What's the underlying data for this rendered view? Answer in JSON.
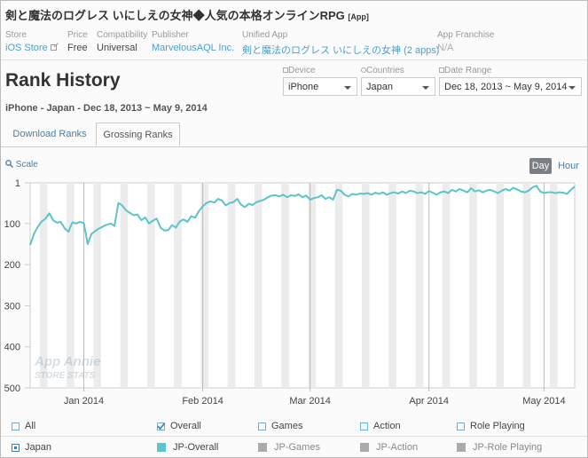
{
  "header": {
    "title": "剣と魔法のログレス いにしえの女神◆人気の本格オンラインRPG",
    "tag": "[App]",
    "fields": [
      {
        "label": "Store",
        "value": "iOS Store"
      },
      {
        "label": "Price",
        "value": "Free"
      },
      {
        "label": "Compatibility",
        "value": "Universal"
      },
      {
        "label": "Publisher",
        "value": "MarvelousAQL Inc."
      },
      {
        "label": "Unified App",
        "value": "剣と魔法のログレス いにしえの女神 (2 apps)"
      },
      {
        "label": "App Franchise",
        "value": "N/A"
      }
    ]
  },
  "section_title": "Rank History",
  "selectors": [
    {
      "label": "Device",
      "value": "iPhone"
    },
    {
      "label": "Countries",
      "value": "Japan"
    },
    {
      "label": "Date Range",
      "value": "Dec 18, 2013 ~ May 9, 2014"
    }
  ],
  "subtitle": "iPhone - Japan - Dec 18, 2013 ~ May 9, 2014",
  "tabs": [
    {
      "label": "Download Ranks",
      "active": false
    },
    {
      "label": "Grossing Ranks",
      "active": true
    }
  ],
  "scale_label": "Scale",
  "granularity": [
    {
      "label": "Day",
      "active": true
    },
    {
      "label": "Hour",
      "active": false
    }
  ],
  "chart_data": {
    "type": "line",
    "watermark": [
      "App Annie",
      "STORE STATS"
    ],
    "categories": [
      null,
      null,
      null,
      null,
      null,
      null,
      null,
      null,
      null,
      null,
      null,
      null,
      null,
      null,
      "Jan 2014",
      null,
      null,
      null,
      null,
      null,
      null,
      null,
      null,
      null,
      null,
      null,
      null,
      null,
      null,
      null,
      null,
      null,
      null,
      null,
      null,
      null,
      null,
      null,
      null,
      null,
      null,
      null,
      null,
      null,
      null,
      "Feb 2014",
      null,
      null,
      null,
      null,
      null,
      null,
      null,
      null,
      null,
      null,
      null,
      null,
      null,
      null,
      null,
      null,
      null,
      null,
      null,
      null,
      null,
      null,
      null,
      null,
      null,
      null,
      null,
      "Mar 2014",
      null,
      null,
      null,
      null,
      null,
      null,
      null,
      null,
      null,
      null,
      null,
      null,
      null,
      null,
      null,
      null,
      null,
      null,
      null,
      null,
      null,
      null,
      null,
      null,
      null,
      null,
      null,
      null,
      null,
      null,
      "Apr 2014",
      null,
      null,
      null,
      null,
      null,
      null,
      null,
      null,
      null,
      null,
      null,
      null,
      null,
      null,
      null,
      null,
      null,
      null,
      null,
      null,
      null,
      null,
      null,
      null,
      null,
      null,
      null,
      null,
      null,
      "May 2014",
      null,
      null,
      null,
      null,
      null,
      null,
      null,
      null
    ],
    "series": [
      {
        "name": "JP-Overall",
        "color": "#5bc4cc",
        "values": [
          152,
          125,
          108,
          95,
          88,
          75,
          92,
          98,
          96,
          112,
          120,
          97,
          100,
          96,
          99,
          150,
          125,
          118,
          112,
          107,
          103,
          100,
          106,
          50,
          56,
          68,
          74,
          80,
          78,
          92,
          85,
          100,
          93,
          88,
          110,
          117,
          116,
          104,
          110,
          95,
          90,
          96,
          82,
          86,
          70,
          58,
          50,
          46,
          49,
          40,
          44,
          56,
          50,
          48,
          40,
          54,
          60,
          52,
          55,
          48,
          45,
          42,
          36,
          32,
          31,
          34,
          30,
          36,
          31,
          33,
          29,
          36,
          32,
          42,
          38,
          36,
          31,
          40,
          36,
          42,
          18,
          20,
          30,
          34,
          28,
          30,
          27,
          28,
          26,
          30,
          25,
          28,
          24,
          30,
          26,
          24,
          27,
          22,
          26,
          20,
          22,
          26,
          24,
          28,
          21,
          25,
          30,
          24,
          22,
          26,
          18,
          22,
          16,
          20,
          24,
          14,
          22,
          19,
          24,
          20,
          18,
          22,
          26,
          20,
          16,
          20,
          13,
          17,
          22,
          24,
          20,
          12,
          8,
          22,
          26,
          24,
          24,
          26,
          24,
          25,
          28,
          18,
          10
        ]
      }
    ],
    "ylim": [
      1,
      500
    ],
    "y_reversed": true,
    "yticks": [
      1,
      100,
      200,
      300,
      400,
      500
    ],
    "grid": false
  },
  "legend": {
    "filters": [
      {
        "label": "All",
        "checked": false
      },
      {
        "label": "Overall",
        "checked": true
      },
      {
        "label": "Games",
        "checked": false
      },
      {
        "label": "Action",
        "checked": false
      },
      {
        "label": "Role Playing",
        "checked": false
      }
    ],
    "country": "Japan",
    "inactive_series": [
      {
        "name": "JP-Games",
        "color": "#aaaaaa"
      },
      {
        "name": "JP-Action",
        "color": "#aaaaaa"
      },
      {
        "name": "JP-Role Playing",
        "color": "#aaaaaa"
      }
    ]
  }
}
